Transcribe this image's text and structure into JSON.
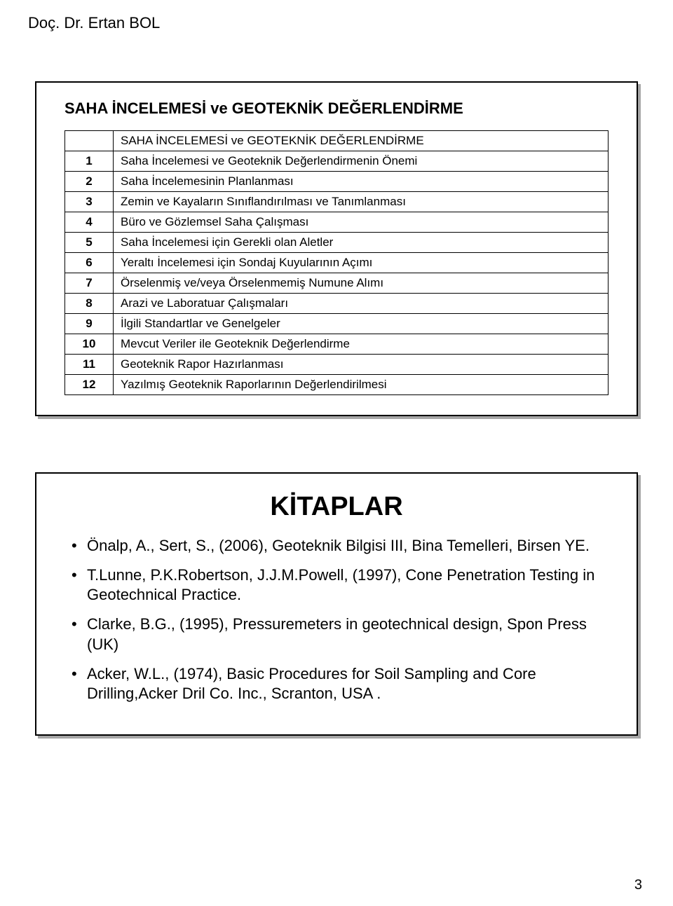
{
  "header": {
    "author": "Doç. Dr. Ertan BOL"
  },
  "panel1": {
    "title": "SAHA İNCELEMESİ ve GEOTEKNİK DEĞERLENDİRME",
    "tableHeader": "SAHA İNCELEMESİ ve GEOTEKNİK DEĞERLENDİRME",
    "rows": [
      {
        "n": "1",
        "text": "Saha İncelemesi ve Geoteknik Değerlendirmenin Önemi"
      },
      {
        "n": "2",
        "text": "Saha İncelemesinin Planlanması"
      },
      {
        "n": "3",
        "text": "Zemin ve Kayaların Sınıflandırılması ve Tanımlanması"
      },
      {
        "n": "4",
        "text": "Büro ve Gözlemsel Saha Çalışması"
      },
      {
        "n": "5",
        "text": "Saha İncelemesi için Gerekli olan Aletler"
      },
      {
        "n": "6",
        "text": "Yeraltı İncelemesi için Sondaj Kuyularının Açımı"
      },
      {
        "n": "7",
        "text": "Örselenmiş ve/veya Örselenmemiş Numune Alımı"
      },
      {
        "n": "8",
        "text": "Arazi ve Laboratuar Çalışmaları"
      },
      {
        "n": "9",
        "text": "İlgili Standartlar ve Genelgeler"
      },
      {
        "n": "10",
        "text": "Mevcut Veriler ile Geoteknik Değerlendirme"
      },
      {
        "n": "11",
        "text": "Geoteknik Rapor Hazırlanması"
      },
      {
        "n": "12",
        "text": "Yazılmış Geoteknik Raporlarının Değerlendirilmesi"
      }
    ]
  },
  "panel2": {
    "title": "KİTAPLAR",
    "items": [
      "Önalp, A., Sert, S., (2006), Geoteknik Bilgisi III, Bina Temelleri, Birsen YE.",
      "T.Lunne, P.K.Robertson, J.J.M.Powell, (1997), Cone Penetration Testing in Geotechnical Practice.",
      "Clarke, B.G., (1995), Pressuremeters in geotechnical design, Spon Press (UK)",
      "Acker, W.L., (1974), Basic Procedures for Soil Sampling and Core Drilling,Acker Dril Co. Inc., Scranton, USA ."
    ]
  },
  "pageNumber": "3",
  "style": {
    "background": "#ffffff",
    "text": "#000000",
    "border": "#000000",
    "shadow": "rgba(0,0,0,0.35)"
  }
}
